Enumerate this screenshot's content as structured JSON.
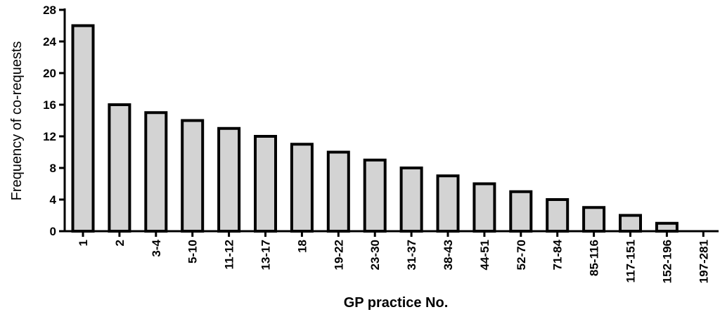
{
  "chart_data": {
    "type": "bar",
    "xlabel": "GP practice No.",
    "ylabel": "Frequency of co-requests",
    "ylim": [
      0,
      28
    ],
    "yticks": [
      0,
      4,
      8,
      12,
      16,
      20,
      24,
      28
    ],
    "grid": false,
    "categories": [
      "1",
      "2",
      "3-4",
      "5-10",
      "11-12",
      "13-17",
      "18",
      "19-22",
      "23-30",
      "31-37",
      "38-43",
      "44-51",
      "52-70",
      "71-84",
      "85-116",
      "117-151",
      "152-196",
      "197-281"
    ],
    "values": [
      26,
      16,
      15,
      14,
      13,
      12,
      11,
      10,
      9,
      8,
      7,
      6,
      5,
      4,
      3,
      2,
      1,
      0
    ],
    "bar_fill": "#d3d3d3",
    "bar_stroke": "#000000"
  }
}
